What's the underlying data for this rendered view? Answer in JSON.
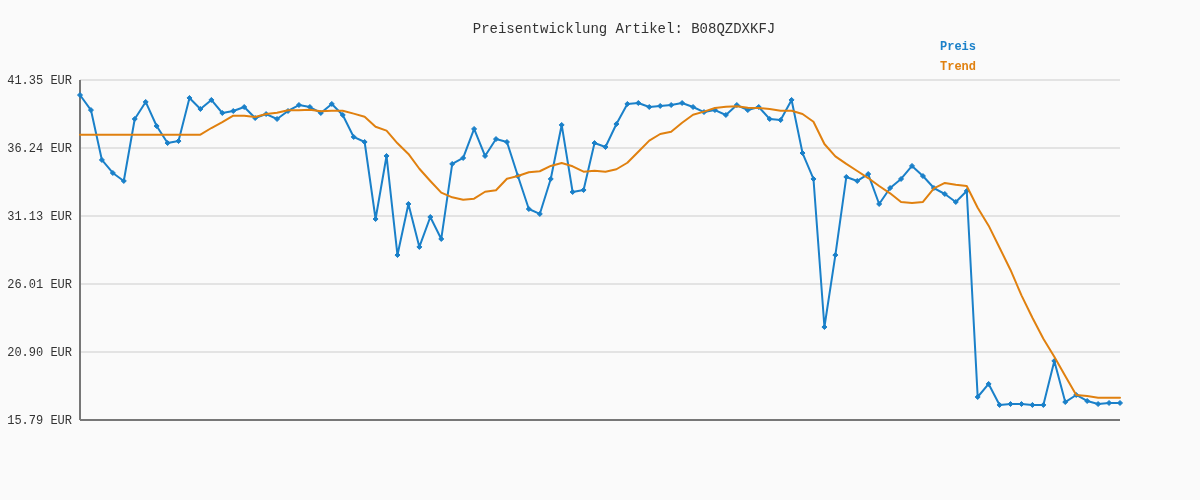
{
  "chart_data": {
    "type": "line",
    "title": "Preisentwicklung Artikel: B08QZDXKFJ",
    "categories": [
      null,
      null,
      null,
      null,
      null,
      null,
      null,
      null,
      null,
      null,
      null,
      null,
      null,
      null,
      null,
      null,
      null,
      null,
      null,
      null,
      null,
      null,
      null,
      null,
      null,
      null,
      null,
      null,
      null,
      null,
      null,
      null,
      null,
      null,
      null,
      null,
      null,
      null,
      null,
      null,
      null,
      null,
      null,
      null,
      null,
      null,
      null,
      null,
      null,
      null,
      null,
      null,
      null,
      null,
      null,
      null,
      null,
      null,
      null,
      null,
      null,
      null,
      null,
      null,
      null,
      null,
      null,
      null,
      null,
      null,
      null,
      null,
      null,
      null,
      null,
      null,
      null,
      null,
      null,
      null,
      null,
      null,
      null,
      null,
      null,
      null,
      null,
      null,
      null,
      null,
      null,
      null,
      null,
      null,
      null,
      null
    ],
    "series": [
      {
        "name": "Preis",
        "color": "#1a80c9",
        "marker": "diamond",
        "values": [
          40.22,
          39.09,
          35.34,
          34.36,
          33.76,
          38.42,
          39.7,
          37.89,
          36.61,
          36.76,
          40.0,
          39.17,
          39.85,
          38.87,
          39.02,
          39.32,
          38.49,
          38.79,
          38.42,
          39.02,
          39.47,
          39.32,
          38.87,
          39.55,
          38.72,
          37.07,
          36.69,
          30.9,
          35.64,
          28.19,
          32.03,
          28.8,
          31.05,
          29.4,
          35.04,
          35.49,
          37.67,
          35.64,
          36.91,
          36.69,
          34.13,
          31.65,
          31.28,
          33.91,
          37.97,
          32.93,
          33.08,
          36.61,
          36.31,
          38.04,
          39.55,
          39.62,
          39.32,
          39.4,
          39.47,
          39.62,
          39.32,
          38.94,
          39.09,
          38.72,
          39.47,
          39.09,
          39.32,
          38.42,
          38.34,
          39.85,
          35.86,
          33.91,
          22.78,
          28.19,
          34.06,
          33.76,
          34.28,
          32.03,
          33.23,
          33.91,
          34.89,
          34.13,
          33.23,
          32.78,
          32.18,
          33.01,
          17.52,
          18.5,
          16.92,
          16.99,
          16.99,
          16.92,
          16.92,
          20.23,
          17.14,
          17.67,
          17.22,
          16.99,
          17.07,
          17.07
        ]
      },
      {
        "name": "Trend",
        "color": "#e0800f",
        "marker": "none",
        "values": [
          37.24,
          37.24,
          37.24,
          37.24,
          37.24,
          37.24,
          37.24,
          37.24,
          37.24,
          37.24,
          37.24,
          37.24,
          37.74,
          38.19,
          38.67,
          38.67,
          38.57,
          38.79,
          38.89,
          39.07,
          39.07,
          39.12,
          39.0,
          39.04,
          39.04,
          38.82,
          38.59,
          37.84,
          37.54,
          36.59,
          35.79,
          34.68,
          33.76,
          32.88,
          32.53,
          32.35,
          32.43,
          32.95,
          33.06,
          33.93,
          34.13,
          34.41,
          34.49,
          34.89,
          35.11,
          34.86,
          34.46,
          34.53,
          34.46,
          34.64,
          35.13,
          35.96,
          36.79,
          37.29,
          37.46,
          38.14,
          38.74,
          38.97,
          39.24,
          39.34,
          39.37,
          39.27,
          39.24,
          39.17,
          39.04,
          39.04,
          38.79,
          38.21,
          36.54,
          35.61,
          35.04,
          34.51,
          33.98,
          33.38,
          32.83,
          32.18,
          32.1,
          32.18,
          33.21,
          33.61,
          33.48,
          33.38,
          31.75,
          30.4,
          28.74,
          27.07,
          25.16,
          23.48,
          21.9,
          20.55,
          19.1,
          17.67,
          17.59,
          17.47,
          17.47,
          17.47
        ]
      }
    ],
    "ylim": [
      15.79,
      41.35
    ],
    "yticks": [
      {
        "value": 15.79,
        "label": "15.79 EUR"
      },
      {
        "value": 20.9,
        "label": "20.90 EUR"
      },
      {
        "value": 26.01,
        "label": "26.01 EUR"
      },
      {
        "value": 31.13,
        "label": "31.13 EUR"
      },
      {
        "value": 36.24,
        "label": "36.24 EUR"
      },
      {
        "value": 41.35,
        "label": "41.35 EUR"
      }
    ],
    "grid": "y",
    "legend": "top right",
    "tick_labels": "y"
  }
}
